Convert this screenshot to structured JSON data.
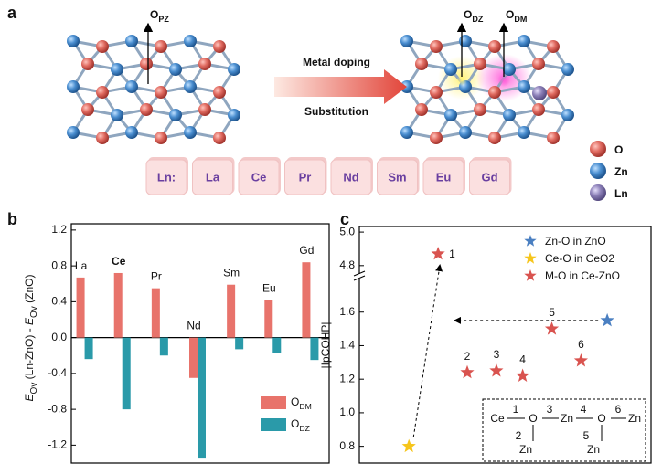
{
  "panel_labels": [
    "a",
    "b",
    "c"
  ],
  "schematic": {
    "sites": [
      {
        "main": "O",
        "sub": "PZ"
      },
      {
        "main": "O",
        "sub": "DZ"
      },
      {
        "main": "O",
        "sub": "DM"
      }
    ],
    "arrow_top": "Metal doping",
    "arrow_bottom": "Substitution",
    "ln_boxes": [
      "Ln:",
      "La",
      "Ce",
      "Pr",
      "Nd",
      "Sm",
      "Eu",
      "Gd"
    ],
    "legend": [
      "O",
      "Zn",
      "Ln"
    ]
  },
  "chart_data": [
    {
      "type": "bar",
      "y_label": [
        "E",
        "Ov",
        " (Ln-ZnO) - ",
        "E",
        "Ov",
        " (ZnO)"
      ],
      "categories": [
        "La",
        "Ce",
        "Pr",
        "Nd",
        "Sm",
        "Eu",
        "Gd"
      ],
      "label_colors": [
        "#111111",
        "#e0524a",
        "#111111",
        "#111111",
        "#111111",
        "#111111",
        "#111111"
      ],
      "series": [
        {
          "name": "ODM",
          "color": "#e8736b",
          "values": [
            0.67,
            0.72,
            0.55,
            -0.45,
            0.59,
            0.42,
            0.84
          ]
        },
        {
          "name": "ODZ",
          "color": "#2a9aa9",
          "values": [
            -0.24,
            -0.8,
            -0.2,
            -1.35,
            -0.13,
            -0.17,
            -0.25
          ]
        }
      ],
      "ylim": [
        -1.4,
        1.27
      ],
      "yticks": [
        1.2,
        0.8,
        0.4,
        {
          "value": 0,
          "label": "0.0"
        },
        -0.4,
        -0.8,
        -1.2
      ],
      "legend": "lower right"
    },
    {
      "type": "scatter",
      "y_label": "|IpCOHP|",
      "xlim": [
        0,
        10
      ],
      "ylim": [
        0.7,
        5.03
      ],
      "y_break": [
        1.8,
        4.75
      ],
      "yticks": [
        0.8,
        {
          "value": 1,
          "label": "1.0"
        },
        1.2,
        1.4,
        1.6,
        4.8,
        {
          "value": 5,
          "label": "5.0"
        }
      ],
      "series": [
        {
          "name": "Zn-O in ZnO",
          "color": "#4a7fc1",
          "x": [
            8.5
          ],
          "values": [
            1.55
          ]
        },
        {
          "name": "Ce-O in CeO2",
          "color": "#f6c51b",
          "x": [
            1.7
          ],
          "values": [
            0.8
          ]
        },
        {
          "name": "M-O in Ce-ZnO",
          "color": "#d9534f",
          "x": [
            2.7,
            3.7,
            4.7,
            5.6,
            6.6,
            7.6
          ],
          "values": [
            4.87,
            1.24,
            1.25,
            1.22,
            1.5,
            1.31
          ],
          "point_labels": [
            "1",
            "2",
            "3",
            "4",
            "5",
            "6"
          ]
        }
      ],
      "legend": "upper right"
    }
  ],
  "inset": {
    "atoms": [
      "Ce",
      "O",
      "Zn",
      "O",
      "Zn",
      "Zn",
      "Zn"
    ],
    "bonds": [
      "1",
      "2",
      "3",
      "4",
      "5",
      "6"
    ]
  }
}
